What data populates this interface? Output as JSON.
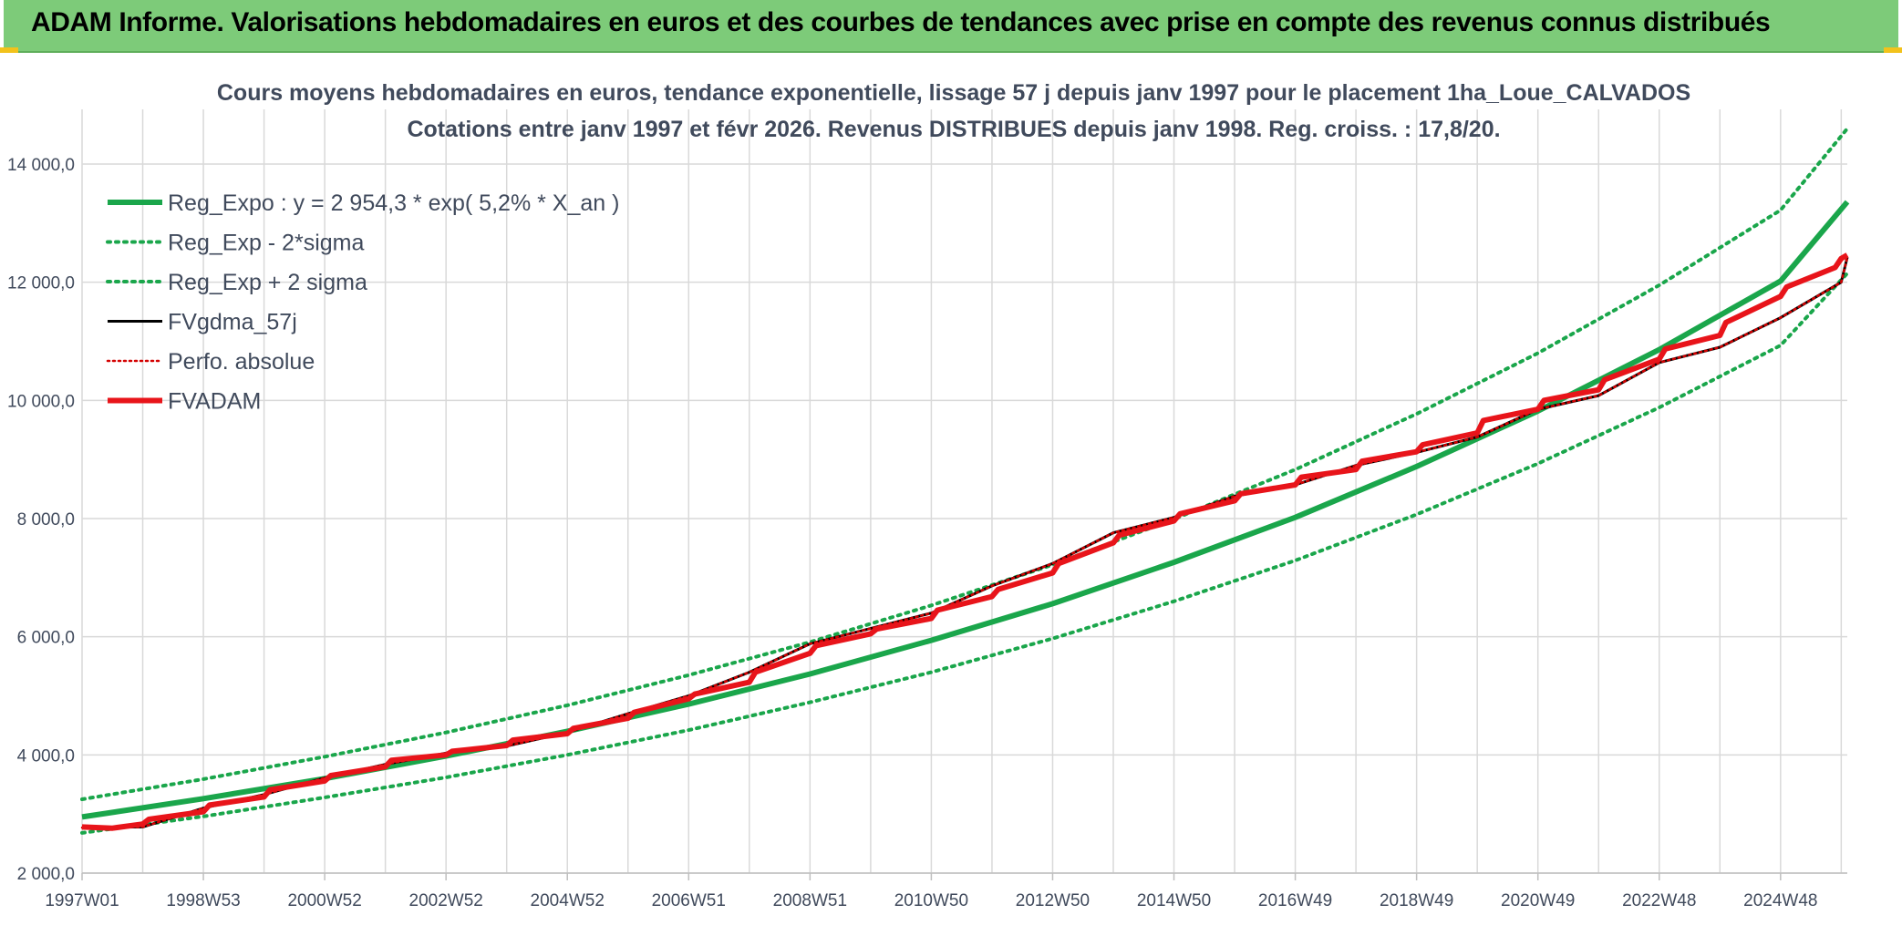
{
  "header": {
    "title": "ADAM Informe. Valorisations hebdomadaires en euros et des courbes de tendances avec prise en compte des revenus connus distribués"
  },
  "chart_data": {
    "type": "line",
    "title_line1": "Cours moyens hebdomadaires en euros, tendance exponentielle, lissage 57 j depuis janv 1997 pour le placement 1ha_Loue_CALVADOS",
    "title_line2": "Cotations entre janv 1997 et févr 2026. Revenus DISTRIBUES depuis janv 1998. Reg. croiss. : 17,8/20.",
    "x_tick_labels": [
      "1997W01",
      "1998W53",
      "2000W52",
      "2002W52",
      "2004W52",
      "2006W51",
      "2008W51",
      "2010W50",
      "2012W50",
      "2014W50",
      "2016W49",
      "2018W49",
      "2020W49",
      "2022W48",
      "2024W48"
    ],
    "x_tick_years": [
      1997.0,
      1999.0,
      2001.0,
      2003.0,
      2005.0,
      2007.0,
      2009.0,
      2011.0,
      2013.0,
      2015.0,
      2017.0,
      2019.0,
      2021.0,
      2023.0,
      2025.0
    ],
    "xlim": [
      1997.0,
      2026.1
    ],
    "ylim": [
      2000,
      14000
    ],
    "y_ticks": [
      2000,
      4000,
      6000,
      8000,
      10000,
      12000,
      14000
    ],
    "y_tick_labels": [
      "2 000,0",
      "4 000,0",
      "6 000,0",
      "8 000,0",
      "10 000,0",
      "12 000,0",
      "14 000,0"
    ],
    "grid": true,
    "legend_position": "top-left",
    "colors": {
      "trend": "#1aa64b",
      "fvgdma": "#000000",
      "perfo": "#d40000",
      "fvadam": "#e8141a",
      "grid": "#d9d9d9",
      "text": "#404a5c"
    },
    "series": [
      {
        "name": "Reg_Expo : y = 2 954,3 * exp( 5,2% *  X_an )",
        "style": "solid-thick",
        "x": [
          1997.0,
          1999.0,
          2001.0,
          2003.0,
          2005.0,
          2007.0,
          2009.0,
          2011.0,
          2013.0,
          2015.0,
          2017.0,
          2019.0,
          2021.0,
          2023.0,
          2025.0,
          2026.1
        ],
        "y": [
          2950,
          3260,
          3600,
          3980,
          4400,
          4860,
          5370,
          5940,
          6560,
          7260,
          8020,
          8880,
          9820,
          10860,
          12020,
          13360
        ]
      },
      {
        "name": "Reg_Exp - 2*sigma",
        "style": "dotted",
        "x": [
          1997.0,
          1999.0,
          2001.0,
          2003.0,
          2005.0,
          2007.0,
          2009.0,
          2011.0,
          2013.0,
          2015.0,
          2017.0,
          2019.0,
          2021.0,
          2023.0,
          2025.0,
          2026.1
        ],
        "y": [
          2680,
          2960,
          3280,
          3620,
          4000,
          4420,
          4890,
          5400,
          5970,
          6600,
          7290,
          8070,
          8930,
          9880,
          10930,
          12150
        ]
      },
      {
        "name": "Reg_Exp + 2 sigma",
        "style": "dotted",
        "x": [
          1997.0,
          1999.0,
          2001.0,
          2003.0,
          2005.0,
          2007.0,
          2009.0,
          2011.0,
          2013.0,
          2015.0,
          2017.0,
          2019.0,
          2021.0,
          2023.0,
          2025.0,
          2026.1
        ],
        "y": [
          3250,
          3590,
          3970,
          4380,
          4840,
          5350,
          5910,
          6530,
          7220,
          7990,
          8830,
          9770,
          10800,
          11950,
          13220,
          14600
        ]
      },
      {
        "name": "FVgdma_57j",
        "style": "solid-thin",
        "x": [
          1997.0,
          1998.0,
          1999.0,
          2000.0,
          2001.0,
          2002.0,
          2003.0,
          2004.0,
          2005.0,
          2006.0,
          2007.0,
          2008.0,
          2009.0,
          2010.0,
          2011.0,
          2012.0,
          2013.0,
          2014.0,
          2015.0,
          2016.0,
          2017.0,
          2018.0,
          2019.0,
          2020.0,
          2021.0,
          2022.0,
          2023.0,
          2024.0,
          2025.0,
          2026.0,
          2026.1
        ],
        "y": [
          2770,
          2780,
          3100,
          3330,
          3610,
          3840,
          4030,
          4150,
          4380,
          4700,
          5000,
          5400,
          5880,
          6140,
          6400,
          6860,
          7240,
          7760,
          8020,
          8380,
          8570,
          8900,
          9120,
          9380,
          9850,
          10080,
          10640,
          10900,
          11400,
          12000,
          12420
        ]
      },
      {
        "name": "Perfo. absolue",
        "style": "dotted-red",
        "x": [
          1997.0,
          1998.0,
          1999.0,
          2000.0,
          2001.0,
          2002.0,
          2003.0,
          2004.0,
          2005.0,
          2006.0,
          2007.0,
          2008.0,
          2009.0,
          2010.0,
          2011.0,
          2012.0,
          2013.0,
          2014.0,
          2015.0,
          2016.0,
          2017.0,
          2018.0,
          2019.0,
          2020.0,
          2021.0,
          2022.0,
          2023.0,
          2024.0,
          2025.0,
          2026.0,
          2026.1
        ],
        "y": [
          2770,
          2780,
          3100,
          3330,
          3610,
          3840,
          4030,
          4150,
          4380,
          4700,
          5000,
          5400,
          5880,
          6140,
          6400,
          6860,
          7240,
          7760,
          8020,
          8380,
          8570,
          8900,
          9120,
          9380,
          9850,
          10080,
          10640,
          10900,
          11400,
          12000,
          12420
        ]
      },
      {
        "name": "FVADAM",
        "style": "solid-red",
        "x": [
          1997.0,
          1997.5,
          1998.0,
          1998.1,
          1999.0,
          1999.1,
          2000.0,
          2000.1,
          2001.0,
          2001.1,
          2002.0,
          2002.1,
          2003.0,
          2003.1,
          2004.0,
          2004.1,
          2005.0,
          2005.1,
          2006.0,
          2006.1,
          2007.0,
          2007.1,
          2008.0,
          2008.1,
          2009.0,
          2009.1,
          2010.0,
          2010.1,
          2011.0,
          2011.1,
          2012.0,
          2012.1,
          2013.0,
          2013.1,
          2014.0,
          2014.1,
          2015.0,
          2015.1,
          2016.0,
          2016.1,
          2017.0,
          2017.1,
          2018.0,
          2018.1,
          2019.0,
          2019.1,
          2020.0,
          2020.1,
          2021.0,
          2021.1,
          2022.0,
          2022.1,
          2023.0,
          2023.1,
          2024.0,
          2024.1,
          2025.0,
          2025.1,
          2025.9,
          2026.0,
          2026.1
        ],
        "y": [
          2780,
          2760,
          2830,
          2910,
          3040,
          3150,
          3290,
          3410,
          3560,
          3650,
          3800,
          3910,
          4000,
          4060,
          4160,
          4250,
          4360,
          4450,
          4620,
          4720,
          4950,
          5030,
          5230,
          5400,
          5720,
          5850,
          6050,
          6130,
          6310,
          6450,
          6680,
          6800,
          7080,
          7240,
          7590,
          7720,
          7960,
          8080,
          8300,
          8420,
          8570,
          8700,
          8830,
          8970,
          9130,
          9250,
          9450,
          9660,
          9850,
          10000,
          10180,
          10350,
          10700,
          10870,
          11100,
          11320,
          11760,
          11920,
          12250,
          12400,
          12460
        ]
      }
    ]
  }
}
